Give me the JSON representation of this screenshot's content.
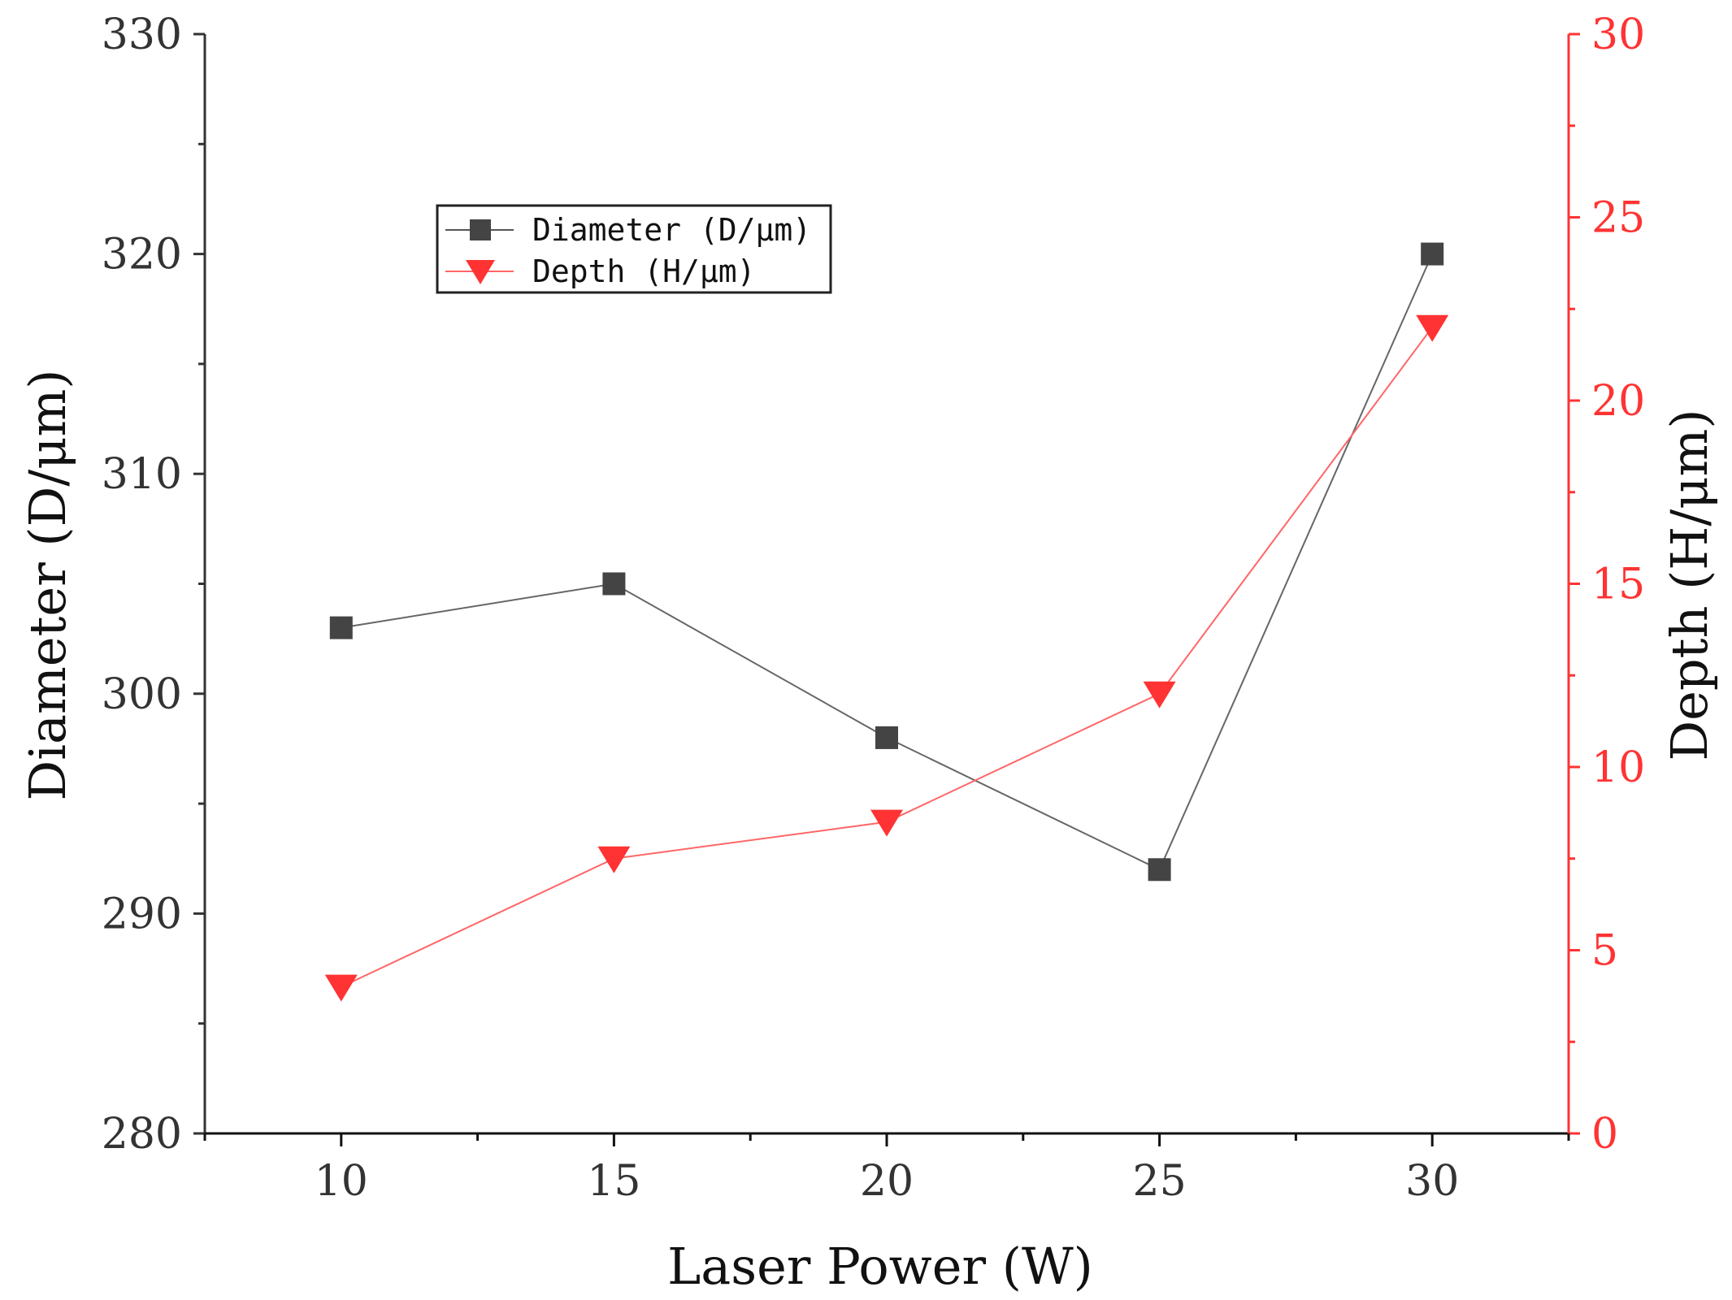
{
  "chart_data": {
    "type": "line",
    "x": [
      10,
      15,
      20,
      25,
      30
    ],
    "xlabel": "Laser Power (W)",
    "xlim": [
      7.5,
      32.5
    ],
    "xticks": [
      10,
      15,
      20,
      25,
      30
    ],
    "y_left": {
      "label": "Diameter (D/μm)",
      "lim": [
        280,
        330
      ],
      "ticks": [
        280,
        290,
        300,
        310,
        320,
        330
      ],
      "color": "#333333"
    },
    "y_right": {
      "label": "Depth (H/μm)",
      "lim": [
        0,
        30
      ],
      "ticks": [
        0,
        5,
        10,
        15,
        20,
        25,
        30
      ],
      "color": "#ff3333"
    },
    "series": [
      {
        "name": "Diameter (D/μm)",
        "axis": "left",
        "marker": "square",
        "color": "#444444",
        "values": [
          303,
          305,
          298,
          292,
          320
        ]
      },
      {
        "name": "Depth (H/μm)",
        "axis": "right",
        "marker": "triangle-down",
        "color": "#ff3333",
        "values": [
          4,
          7.5,
          8.5,
          12,
          22
        ]
      }
    ],
    "legend_position": "upper-left",
    "grid": false
  }
}
